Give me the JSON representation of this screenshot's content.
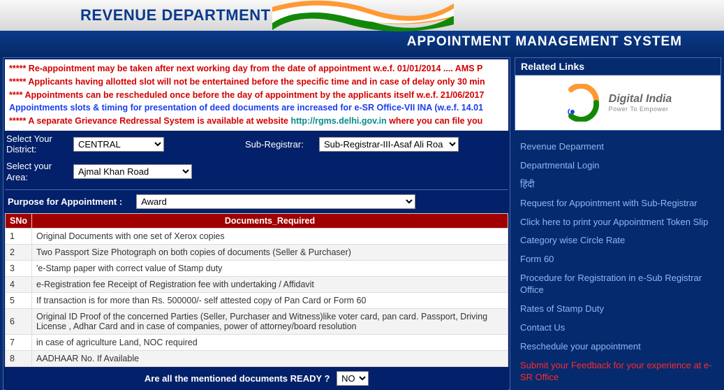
{
  "header": {
    "department": "REVENUE DEPARTMENT",
    "system_title": "APPOINTMENT MANAGEMENT SYSTEM"
  },
  "marquee": [
    {
      "cls": "red",
      "text": "***** Re-appointment may be taken after next working day from the date of appointment w.e.f. 01/01/2014 .... AMS P"
    },
    {
      "cls": "red",
      "text": "***** Applicants having allotted slot will not be entertained before the specific time and in case of delay only 30 min"
    },
    {
      "cls": "red",
      "text": "**** Appointments can be rescheduled once before the day of appointment by the applicants itself w.e.f. 21/06/2017"
    },
    {
      "cls": "blue",
      "text": "Appointments slots & timing for presentation of deed documents are increased for e-SR Office-VII INA (w.e.f. 14.01"
    },
    {
      "cls": "mixed",
      "pre": "***** A separate Grievance Redressal System is available at website ",
      "link": "http://rgms.delhi.gov.in",
      "post": " where you can file you"
    }
  ],
  "form": {
    "district_label": "Select Your District:",
    "district_value": "CENTRAL",
    "subreg_label": "Sub-Registrar:",
    "subreg_value": "Sub-Registrar-III-Asaf Ali Roa",
    "area_label": "Select your Area:",
    "area_value": "Ajmal Khan Road",
    "purpose_label": "Purpose for Appointment :",
    "purpose_value": "Award"
  },
  "table": {
    "headers": {
      "sno": "SNo",
      "doc": "Documents_Required"
    },
    "rows": [
      {
        "sno": "1",
        "doc": "Original Documents with one set of Xerox copies"
      },
      {
        "sno": "2",
        "doc": "Two Passport Size Photograph on both copies of documents (Seller & Purchaser)"
      },
      {
        "sno": "3",
        "doc": "'e-Stamp paper with correct value of Stamp duty"
      },
      {
        "sno": "4",
        "doc": "e-Registration fee Receipt of Registration fee with undertaking / Affidavit"
      },
      {
        "sno": "5",
        "doc": "If transaction is for more than Rs. 500000/- self attested copy of Pan Card or Form 60"
      },
      {
        "sno": "6",
        "doc": "Original ID Proof of the concerned Parties (Seller, Purchaser and Witness)like voter card, pan card. Passport, Driving License , Adhar Card and in case of companies, power of attorney/board resolution"
      },
      {
        "sno": "7",
        "doc": "in case of agriculture Land, NOC required"
      },
      {
        "sno": "8",
        "doc": "AADHAAR No. If Available"
      }
    ]
  },
  "ready": {
    "label": "Are all the  mentioned documents READY ?",
    "value": "NO"
  },
  "sidebar": {
    "heading": "Related Links",
    "digital_india": {
      "title": "Digital India",
      "sub": "Power To Empower"
    },
    "links": [
      {
        "text": "Revenue Deparment",
        "red": false
      },
      {
        "text": "Departmental Login",
        "red": false
      },
      {
        "text": "हिंदी",
        "red": false
      },
      {
        "text": "Request for Appointment with Sub-Registrar",
        "red": false
      },
      {
        "text": "Click here to print your Appointment Token Slip",
        "red": false
      },
      {
        "text": "Category wise Circle Rate",
        "red": false
      },
      {
        "text": "Form 60",
        "red": false
      },
      {
        "text": "Procedure for Registration in e-Sub Registrar Office",
        "red": false
      },
      {
        "text": "Rates of Stamp Duty",
        "red": false
      },
      {
        "text": "Contact Us",
        "red": false
      },
      {
        "text": "Reschedule your appointment",
        "red": false
      },
      {
        "text": "Submit your Feedback for your experience at e-SR Office",
        "red": true
      }
    ]
  },
  "colors": {
    "header_blue": "#0a3a8c",
    "panel_blue": "#03206a",
    "bg_blue": "#062a6e",
    "table_head": "#a00000",
    "link": "#8fb8f0",
    "red": "#ff2a2a"
  }
}
